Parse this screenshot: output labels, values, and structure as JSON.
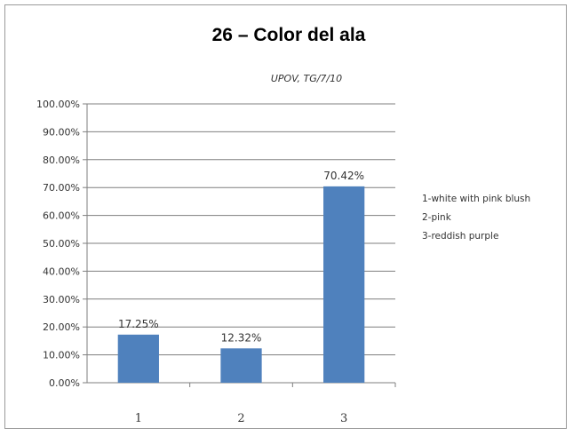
{
  "chart_data": {
    "type": "bar",
    "title": "26 – Color del ala",
    "subtitle": "UPOV, TG/7/10",
    "categories": [
      "1",
      "2",
      "3"
    ],
    "values": [
      17.25,
      12.32,
      70.42
    ],
    "data_labels": [
      "17.25%",
      "12.32%",
      "70.42%"
    ],
    "ylim": [
      0,
      100
    ],
    "yticks": [
      "0.00%",
      "10.00%",
      "20.00%",
      "30.00%",
      "40.00%",
      "50.00%",
      "60.00%",
      "70.00%",
      "80.00%",
      "90.00%",
      "100.00%"
    ],
    "grid": true,
    "legend_position": "right",
    "legend": [
      "1-white with pink blush",
      "2-pink",
      "3-reddish purple"
    ],
    "colors": {
      "bar": "#4f81bd",
      "grid": "#7f7f7f",
      "axis": "#7f7f7f"
    }
  }
}
